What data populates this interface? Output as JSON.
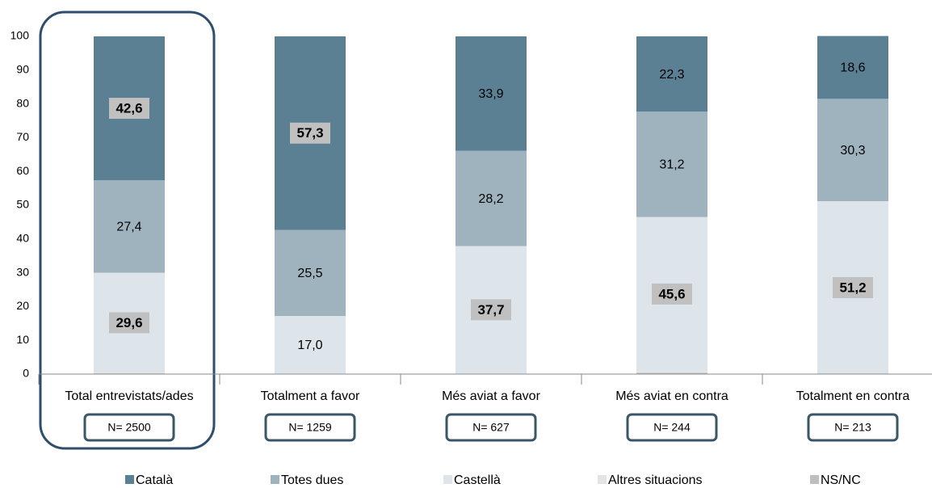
{
  "chart_data": {
    "type": "stacked_bar",
    "categories": [
      "Total entrevistats/ades",
      "Totalment a favor",
      "Més aviat a favor",
      "Més aviat en contra",
      "Totalment en contra"
    ],
    "sample_sizes": [
      "N= 2500",
      "N= 1259",
      "N= 627",
      "N= 244",
      "N= 213"
    ],
    "ylim": [
      0,
      100
    ],
    "yticks": [
      0,
      10,
      20,
      30,
      40,
      50,
      60,
      70,
      80,
      90,
      100
    ],
    "grid": false,
    "legend": "bottom",
    "series": [
      {
        "name": "NS/NC",
        "color": "#bfbfbf",
        "values": [
          0.2,
          0.1,
          0.1,
          0.4,
          0
        ]
      },
      {
        "name": "Altres situacions",
        "color": "#e4e4e4",
        "values": [
          0.2,
          0.1,
          0.1,
          0.5,
          0
        ]
      },
      {
        "name": "Castellà",
        "color": "#dde5ea",
        "values": [
          29.6,
          17.0,
          37.7,
          45.6,
          51.2
        ],
        "value_labels": [
          "29,6",
          "17,0",
          "37,7",
          "45,6",
          "51,2"
        ],
        "bold": [
          true,
          false,
          true,
          true,
          true
        ]
      },
      {
        "name": "Totes dues",
        "color": "#9fb3bf",
        "values": [
          27.4,
          25.5,
          28.2,
          31.2,
          30.3
        ],
        "value_labels": [
          "27,4",
          "25,5",
          "28,2",
          "31,2",
          "30,3"
        ],
        "bold": [
          false,
          false,
          false,
          false,
          false
        ]
      },
      {
        "name": "Català",
        "color": "#5b7f93",
        "values": [
          42.6,
          57.3,
          33.9,
          22.3,
          18.6
        ],
        "value_labels": [
          "42,6",
          "57,3",
          "33,9",
          "22,3",
          "18,6"
        ],
        "bold": [
          true,
          true,
          false,
          false,
          false
        ]
      }
    ],
    "legend_order": [
      4,
      3,
      2,
      1,
      0
    ]
  }
}
